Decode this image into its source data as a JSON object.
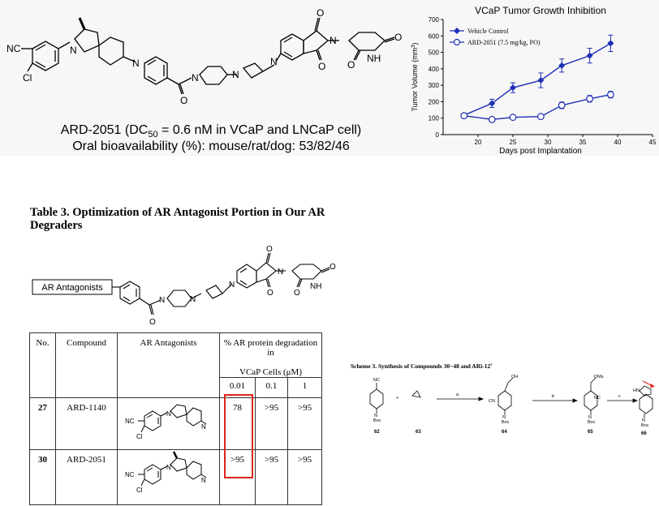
{
  "top": {
    "caption_line1_prefix": "ARD-2051 (DC",
    "caption_line1_sub": "50",
    "caption_line1_suffix": " = 0.6 nM in VCaP and LNCaP cell)",
    "caption_line2": "Oral bioavailability (%): mouse/rat/dog: 53/82/46",
    "structure_labels": {
      "nc": "NC",
      "cl": "Cl",
      "n": "N",
      "o": "O",
      "nh": "NH"
    }
  },
  "chart_data": {
    "type": "line",
    "title": "VCaP Tumor Growth Inhibition",
    "xlabel": "Days post Implantation",
    "ylabel_prefix": "Tumor Volume (mm",
    "ylabel_sup": "3",
    "ylabel_suffix": ")",
    "xlim": [
      15,
      45
    ],
    "ylim": [
      0,
      700
    ],
    "xticks": [
      "20",
      "25",
      "30",
      "35",
      "40",
      "45"
    ],
    "yticks": [
      "0",
      "100",
      "200",
      "300",
      "400",
      "500",
      "600",
      "700"
    ],
    "legend_position": "top-left",
    "grid": false,
    "series": [
      {
        "name": "Vehicle Control",
        "color": "#1f2fb5",
        "marker": "filled-diamond",
        "x": [
          18,
          22,
          25,
          29,
          32,
          36,
          39
        ],
        "y": [
          118,
          190,
          285,
          330,
          420,
          480,
          555
        ],
        "err": [
          10,
          25,
          30,
          45,
          40,
          45,
          50
        ]
      },
      {
        "name": "ARD-2051 (7.5 mg/kg, PO)",
        "color": "#1f2fb5",
        "marker": "open-circle",
        "x": [
          18,
          22,
          25,
          29,
          32,
          36,
          39
        ],
        "y": [
          115,
          92,
          105,
          110,
          178,
          218,
          243
        ],
        "err": [
          8,
          8,
          8,
          10,
          20,
          20,
          20
        ]
      }
    ]
  },
  "table3": {
    "title": "Table 3. Optimization of AR Antagonist Portion in Our AR Degraders",
    "box_label": "AR Antagonists",
    "headers": {
      "no": "No.",
      "compound": "Compound",
      "antagonists": "AR Antagonists",
      "degradation_line1": "% AR protein degradation in",
      "degradation_line2": "VCaP Cells (μM)",
      "conc": [
        "0.01",
        "0.1",
        "1"
      ]
    },
    "rows": [
      {
        "no": "27",
        "compound": "ARD-1140",
        "values": [
          "78",
          ">95",
          ">95"
        ]
      },
      {
        "no": "30",
        "compound": "ARD-2051",
        "values": [
          ">95",
          ">95",
          ">95"
        ]
      }
    ],
    "highlight_color": "#e0231b"
  },
  "scheme3": {
    "title": "Scheme 3. Synthesis of Compounds 30−48 and ARi-12",
    "title_sup": "a",
    "compounds": [
      "62",
      "63",
      "64",
      "65",
      "66"
    ],
    "steps": [
      "a",
      "b",
      "c"
    ],
    "labels": {
      "boc": "Boc",
      "nc": "NC",
      "cn": "CN",
      "oh": "OH",
      "oms": "OMs",
      "hn": "HN",
      "n": "N",
      "plus": "+"
    }
  }
}
